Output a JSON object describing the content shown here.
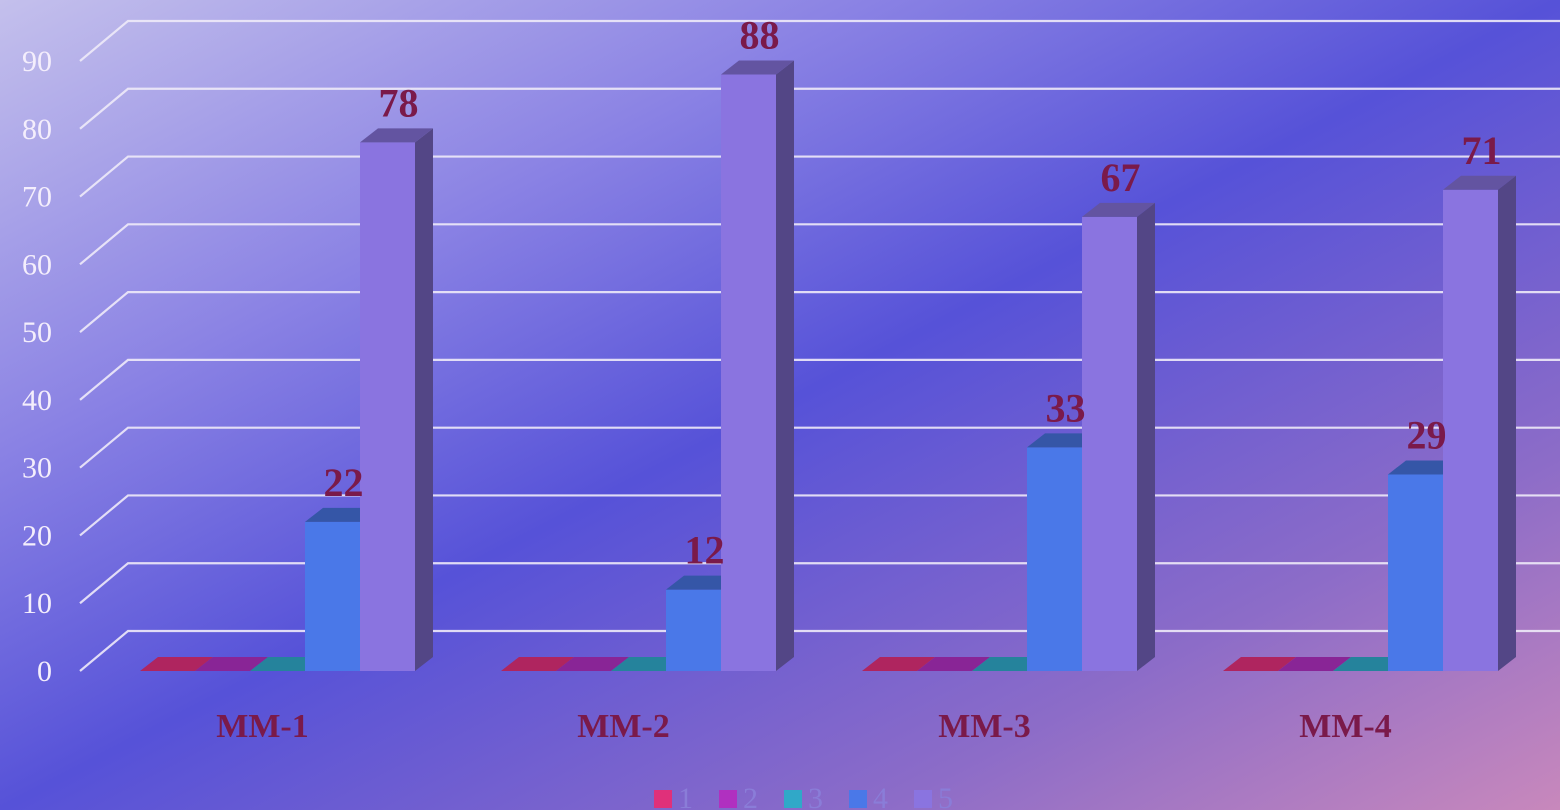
{
  "chart_data": {
    "type": "bar",
    "categories": [
      "MM-1",
      "MM-2",
      "MM-3",
      "MM-4"
    ],
    "series": [
      {
        "name": "1",
        "values": [
          0,
          0,
          0,
          0
        ],
        "color": "#e0307a"
      },
      {
        "name": "2",
        "values": [
          0,
          0,
          0,
          0
        ],
        "color": "#b030c0"
      },
      {
        "name": "3",
        "values": [
          0,
          0,
          0,
          0
        ],
        "color": "#30a8c8"
      },
      {
        "name": "4",
        "values": [
          22,
          12,
          33,
          29
        ],
        "color": "#4a78e8"
      },
      {
        "name": "5",
        "values": [
          78,
          88,
          67,
          71
        ],
        "color": "#8a74e0"
      }
    ],
    "data_labels": [
      {
        "category": "MM-1",
        "series": "4",
        "text": "22"
      },
      {
        "category": "MM-1",
        "series": "5",
        "text": "78"
      },
      {
        "category": "MM-2",
        "series": "4",
        "text": "12"
      },
      {
        "category": "MM-2",
        "series": "5",
        "text": "88"
      },
      {
        "category": "MM-3",
        "series": "4",
        "text": "33"
      },
      {
        "category": "MM-3",
        "series": "5",
        "text": "67"
      },
      {
        "category": "MM-4",
        "series": "4",
        "text": "29"
      },
      {
        "category": "MM-4",
        "series": "5",
        "text": "71"
      }
    ],
    "yticks": [
      "0",
      "10",
      "20",
      "30",
      "40",
      "50",
      "60",
      "70",
      "80",
      "90"
    ],
    "ylim": [
      0,
      90
    ],
    "grid": true,
    "legend_position": "bottom",
    "title": "",
    "xlabel": "",
    "ylabel": ""
  }
}
